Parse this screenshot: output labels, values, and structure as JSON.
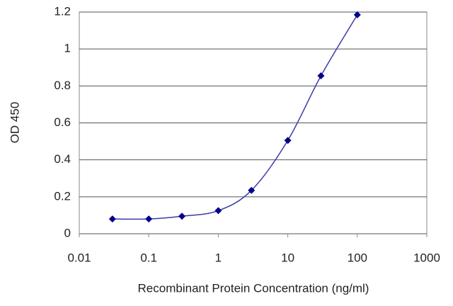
{
  "chart_data": {
    "type": "scatter",
    "x_label": "Recombinant Protein Concentration (ng/ml)",
    "y_label": "OD 450",
    "x": [
      0.03,
      0.1,
      0.3,
      1,
      3,
      10,
      30,
      100
    ],
    "values": [
      0.08,
      0.08,
      0.095,
      0.125,
      0.235,
      0.505,
      0.855,
      1.185
    ],
    "color": "#00008b",
    "line_color": "#3a3aa8",
    "x_log": true,
    "xlim": [
      0.01,
      1000
    ],
    "xticks": [
      0.01,
      0.1,
      1,
      10,
      100,
      1000
    ],
    "ylim": [
      0,
      1.2
    ],
    "yticks": [
      0,
      0.2,
      0.4,
      0.6,
      0.8,
      1,
      1.2
    ],
    "grid": true
  }
}
